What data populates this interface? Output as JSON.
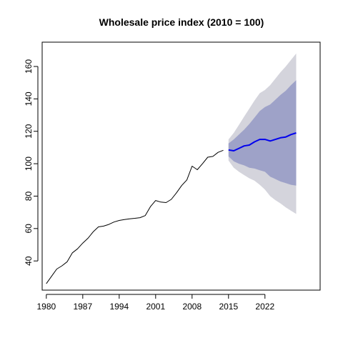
{
  "chart_data": {
    "type": "line",
    "title": "Wholesale price index (2010 = 100)",
    "xlabel": "",
    "ylabel": "",
    "xlim": [
      1979.2,
      2032.6
    ],
    "ylim": [
      22,
      175
    ],
    "x_ticks": [
      1980,
      1987,
      1994,
      2001,
      2008,
      2015,
      2022
    ],
    "y_ticks": [
      40,
      60,
      80,
      100,
      120,
      140,
      160
    ],
    "grid": false,
    "legend": "none",
    "series": [
      {
        "role": "historical",
        "color": "#000000",
        "x": [
          1980,
          1981,
          1982,
          1983,
          1984,
          1985,
          1986,
          1987,
          1988,
          1989,
          1990,
          1991,
          1992,
          1993,
          1994,
          1995,
          1996,
          1997,
          1998,
          1999,
          2000,
          2001,
          2002,
          2003,
          2004,
          2005,
          2006,
          2007,
          2008,
          2009,
          2010,
          2011,
          2012,
          2013,
          2014
        ],
        "values": [
          26,
          30.5,
          35,
          37,
          39.5,
          45,
          47.5,
          51,
          54,
          58,
          61,
          61.5,
          62.5,
          64,
          65,
          65.5,
          66,
          66.3,
          66.7,
          68,
          73.5,
          77.3,
          76.3,
          76,
          78,
          82,
          86.5,
          90,
          98.5,
          96.3,
          100,
          104,
          104.5,
          107,
          108.3
        ]
      },
      {
        "role": "forecast_mean",
        "color": "#0000ee",
        "x": [
          2015,
          2016,
          2017,
          2018,
          2019,
          2020,
          2021,
          2022,
          2023,
          2024,
          2025,
          2026,
          2027,
          2028
        ],
        "values": [
          108.5,
          108,
          109.5,
          111,
          111.5,
          113.5,
          115,
          115,
          114,
          115,
          116,
          116.5,
          118,
          119
        ]
      }
    ],
    "bands": [
      {
        "level": "95%",
        "color": "#d4d4dc",
        "x": [
          2015,
          2016,
          2017,
          2018,
          2019,
          2020,
          2021,
          2022,
          2023,
          2024,
          2025,
          2026,
          2027,
          2028
        ],
        "lower": [
          102,
          97.5,
          95,
          93,
          91,
          89.5,
          87,
          84,
          80,
          77.5,
          75.5,
          73,
          71,
          69
        ],
        "upper": [
          115,
          119,
          124,
          129,
          134,
          139,
          143.5,
          145.5,
          148.5,
          152.5,
          156.5,
          160,
          164,
          168
        ]
      },
      {
        "level": "80%",
        "color": "#9ea2c8",
        "x": [
          2015,
          2016,
          2017,
          2018,
          2019,
          2020,
          2021,
          2022,
          2023,
          2024,
          2025,
          2026,
          2027,
          2028
        ],
        "lower": [
          104.5,
          101.5,
          100,
          99,
          97.5,
          97,
          96,
          95,
          92,
          90.5,
          89,
          88,
          87,
          86.5
        ],
        "upper": [
          112.5,
          115,
          118,
          121,
          124.5,
          128.5,
          132.5,
          135,
          136.5,
          139.5,
          142.5,
          145,
          148.5,
          151.5
        ]
      }
    ]
  }
}
